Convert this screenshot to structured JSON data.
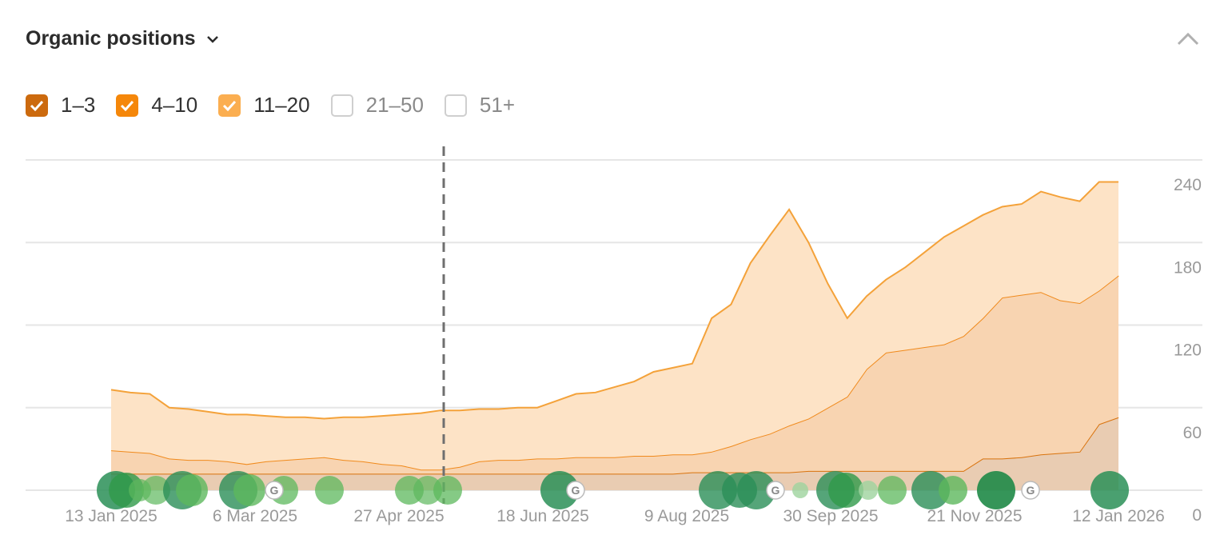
{
  "chart_data": {
    "type": "stacked-area",
    "title": "Organic positions",
    "x": [
      "2025-01-13",
      "2025-01-20",
      "2025-01-27",
      "2025-02-03",
      "2025-02-10",
      "2025-02-17",
      "2025-02-24",
      "2025-03-03",
      "2025-03-10",
      "2025-03-17",
      "2025-03-24",
      "2025-03-31",
      "2025-04-07",
      "2025-04-14",
      "2025-04-21",
      "2025-04-28",
      "2025-05-05",
      "2025-05-12",
      "2025-05-19",
      "2025-05-26",
      "2025-06-02",
      "2025-06-09",
      "2025-06-16",
      "2025-06-23",
      "2025-06-30",
      "2025-07-07",
      "2025-07-14",
      "2025-07-21",
      "2025-07-28",
      "2025-08-04",
      "2025-08-11",
      "2025-08-18",
      "2025-08-25",
      "2025-09-01",
      "2025-09-08",
      "2025-09-15",
      "2025-09-22",
      "2025-09-29",
      "2025-10-06",
      "2025-10-13",
      "2025-10-20",
      "2025-10-27",
      "2025-11-03",
      "2025-11-10",
      "2025-11-17",
      "2025-11-24",
      "2025-12-01",
      "2025-12-08",
      "2025-12-15",
      "2025-12-22",
      "2025-12-29",
      "2026-01-05",
      "2026-01-12"
    ],
    "series": [
      {
        "name": "1–3",
        "color": "#d9730d",
        "fill": "#e9ccb2",
        "box": "#cc6a0e",
        "values": [
          12,
          12,
          12,
          12,
          12,
          12,
          12,
          12,
          12,
          12,
          12,
          12,
          12,
          12,
          12,
          12,
          12,
          12,
          12,
          12,
          12,
          12,
          12,
          12,
          12,
          12,
          12,
          12,
          12,
          12,
          13,
          13,
          13,
          13,
          13,
          13,
          14,
          14,
          14,
          14,
          14,
          14,
          14,
          14,
          14,
          23,
          23,
          24,
          26,
          27,
          28,
          48,
          53
        ]
      },
      {
        "name": "4–10",
        "color": "#f08a1c",
        "fill": "#f8d4b1",
        "box": "#f5870a",
        "values": [
          17,
          16,
          15,
          11,
          10,
          10,
          9,
          7,
          9,
          10,
          11,
          12,
          10,
          9,
          7,
          6,
          3,
          3,
          5,
          9,
          10,
          10,
          11,
          11,
          12,
          12,
          12,
          13,
          13,
          14,
          13,
          15,
          19,
          24,
          28,
          34,
          38,
          46,
          54,
          74,
          86,
          88,
          90,
          92,
          98,
          102,
          117,
          118,
          118,
          111,
          108,
          97,
          103
        ]
      },
      {
        "name": "11–20",
        "color": "#f4a23a",
        "fill": "#fde3c6",
        "box": "#fbae50",
        "values": [
          44,
          43,
          43,
          37,
          37,
          35,
          34,
          36,
          33,
          31,
          30,
          28,
          31,
          32,
          35,
          37,
          41,
          43,
          41,
          38,
          37,
          38,
          37,
          42,
          46,
          47,
          51,
          54,
          61,
          63,
          66,
          97,
          103,
          128,
          144,
          157,
          128,
          90,
          57,
          53,
          53,
          60,
          69,
          78,
          80,
          75,
          66,
          66,
          73,
          75,
          74,
          79,
          68
        ]
      }
    ],
    "inactive_legend": [
      "21–50",
      "51+"
    ],
    "xlim": [
      "2025-01-13",
      "2026-01-12"
    ],
    "xticks": [
      {
        "value": "2025-01-13",
        "label": "13 Jan 2025"
      },
      {
        "value": "2025-03-06",
        "label": "6 Mar 2025"
      },
      {
        "value": "2025-04-27",
        "label": "27 Apr 2025"
      },
      {
        "value": "2025-06-18",
        "label": "18 Jun 2025"
      },
      {
        "value": "2025-08-09",
        "label": "9 Aug 2025"
      },
      {
        "value": "2025-09-30",
        "label": "30 Sep 2025"
      },
      {
        "value": "2025-11-21",
        "label": "21 Nov 2025"
      },
      {
        "value": "2026-01-12",
        "label": "12 Jan 2026"
      }
    ],
    "ylim": [
      0,
      240
    ],
    "yticks": [
      0,
      60,
      120,
      180,
      240
    ],
    "grid": true
  }
}
